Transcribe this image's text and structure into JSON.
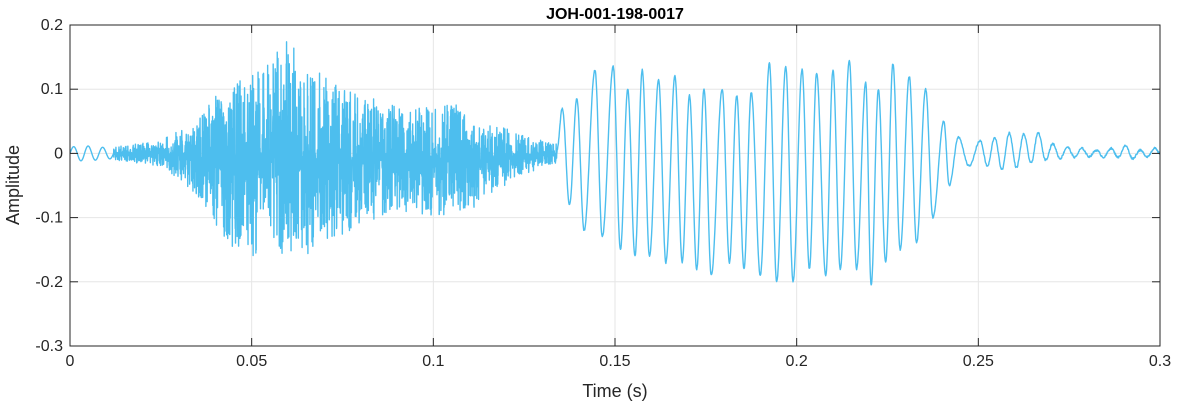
{
  "chart_data": {
    "type": "line",
    "title": "JOH-001-198-0017",
    "xlabel": "Time (s)",
    "ylabel": "Amplitude",
    "xlim": [
      0,
      0.3
    ],
    "ylim": [
      -0.3,
      0.2
    ],
    "xticks": [
      0,
      0.05,
      0.1,
      0.15,
      0.2,
      0.25,
      0.3
    ],
    "xtick_labels": [
      "0",
      "0.05",
      "0.1",
      "0.15",
      "0.2",
      "0.25",
      "0.3"
    ],
    "yticks": [
      -0.3,
      -0.2,
      -0.1,
      0,
      0.1,
      0.2
    ],
    "ytick_labels": [
      "-0.3",
      "-0.2",
      "-0.1",
      "0",
      "0.1",
      "0.2"
    ],
    "grid": true,
    "line_color": "#4DBEEE",
    "series": [
      {
        "segments": [
          {
            "t0": 0.0,
            "t1": 0.012,
            "kind": "tone",
            "freq": 250,
            "amp": [
              [
                0.0,
                0.01
              ],
              [
                0.004,
                0.012
              ],
              [
                0.012,
                0.008
              ]
            ]
          },
          {
            "t0": 0.012,
            "t1": 0.134,
            "kind": "noise",
            "env_pos": [
              [
                0.012,
                0.01
              ],
              [
                0.025,
                0.02
              ],
              [
                0.035,
                0.05
              ],
              [
                0.04,
                0.09
              ],
              [
                0.045,
                0.11
              ],
              [
                0.05,
                0.12
              ],
              [
                0.055,
                0.15
              ],
              [
                0.06,
                0.18
              ],
              [
                0.065,
                0.14
              ],
              [
                0.07,
                0.12
              ],
              [
                0.075,
                0.1
              ],
              [
                0.08,
                0.09
              ],
              [
                0.09,
                0.08
              ],
              [
                0.1,
                0.07
              ],
              [
                0.105,
                0.09
              ],
              [
                0.11,
                0.05
              ],
              [
                0.12,
                0.04
              ],
              [
                0.13,
                0.02
              ],
              [
                0.134,
                0.015
              ]
            ],
            "env_neg": [
              [
                0.012,
                -0.01
              ],
              [
                0.025,
                -0.02
              ],
              [
                0.03,
                -0.04
              ],
              [
                0.035,
                -0.07
              ],
              [
                0.04,
                -0.11
              ],
              [
                0.045,
                -0.15
              ],
              [
                0.05,
                -0.16
              ],
              [
                0.055,
                -0.15
              ],
              [
                0.06,
                -0.17
              ],
              [
                0.065,
                -0.16
              ],
              [
                0.07,
                -0.14
              ],
              [
                0.075,
                -0.13
              ],
              [
                0.08,
                -0.11
              ],
              [
                0.09,
                -0.09
              ],
              [
                0.1,
                -0.1
              ],
              [
                0.11,
                -0.09
              ],
              [
                0.12,
                -0.05
              ],
              [
                0.13,
                -0.02
              ],
              [
                0.134,
                -0.015
              ]
            ]
          },
          {
            "t0": 0.134,
            "t1": 0.3,
            "kind": "voiced",
            "peaks": [
              [
                0.1355,
                0.07
              ],
              [
                0.1395,
                0.085
              ],
              [
                0.1445,
                0.13
              ],
              [
                0.1495,
                0.135
              ],
              [
                0.1535,
                0.1
              ],
              [
                0.1575,
                0.13
              ],
              [
                0.162,
                0.115
              ],
              [
                0.1665,
                0.12
              ],
              [
                0.1705,
                0.09
              ],
              [
                0.1745,
                0.1
              ],
              [
                0.1795,
                0.1
              ],
              [
                0.1835,
                0.09
              ],
              [
                0.1875,
                0.095
              ],
              [
                0.1925,
                0.14
              ],
              [
                0.197,
                0.135
              ],
              [
                0.2015,
                0.13
              ],
              [
                0.2055,
                0.125
              ],
              [
                0.21,
                0.13
              ],
              [
                0.2145,
                0.145
              ],
              [
                0.219,
                0.11
              ],
              [
                0.2225,
                0.1
              ],
              [
                0.2265,
                0.14
              ],
              [
                0.231,
                0.12
              ],
              [
                0.2355,
                0.1
              ],
              [
                0.2405,
                0.05
              ],
              [
                0.2445,
                0.025
              ],
              [
                0.2505,
                0.02
              ],
              [
                0.2545,
                0.025
              ],
              [
                0.2585,
                0.032
              ],
              [
                0.2625,
                0.03
              ],
              [
                0.2665,
                0.032
              ],
              [
                0.2705,
                0.015
              ],
              [
                0.2745,
                0.01
              ],
              [
                0.2785,
                0.008
              ],
              [
                0.2825,
                0.005
              ],
              [
                0.2865,
                0.008
              ],
              [
                0.2905,
                0.012
              ],
              [
                0.2945,
                0.005
              ],
              [
                0.2985,
                0.008
              ]
            ],
            "troughs": [
              [
                0.1375,
                -0.08
              ],
              [
                0.1415,
                -0.12
              ],
              [
                0.1465,
                -0.13
              ],
              [
                0.1515,
                -0.15
              ],
              [
                0.1555,
                -0.16
              ],
              [
                0.1595,
                -0.16
              ],
              [
                0.164,
                -0.17
              ],
              [
                0.1685,
                -0.17
              ],
              [
                0.1725,
                -0.18
              ],
              [
                0.1765,
                -0.19
              ],
              [
                0.1815,
                -0.17
              ],
              [
                0.1855,
                -0.18
              ],
              [
                0.19,
                -0.19
              ],
              [
                0.1945,
                -0.2
              ],
              [
                0.199,
                -0.2
              ],
              [
                0.2035,
                -0.18
              ],
              [
                0.208,
                -0.19
              ],
              [
                0.212,
                -0.18
              ],
              [
                0.2165,
                -0.18
              ],
              [
                0.2205,
                -0.205
              ],
              [
                0.2245,
                -0.17
              ],
              [
                0.2285,
                -0.15
              ],
              [
                0.233,
                -0.14
              ],
              [
                0.2375,
                -0.1
              ],
              [
                0.242,
                -0.05
              ],
              [
                0.2475,
                -0.02
              ],
              [
                0.2525,
                -0.02
              ],
              [
                0.2565,
                -0.025
              ],
              [
                0.2605,
                -0.022
              ],
              [
                0.2645,
                -0.015
              ],
              [
                0.2685,
                -0.01
              ],
              [
                0.2725,
                -0.008
              ],
              [
                0.2765,
                -0.006
              ],
              [
                0.2805,
                -0.005
              ],
              [
                0.2845,
                -0.006
              ],
              [
                0.2885,
                -0.006
              ],
              [
                0.2925,
                -0.008
              ],
              [
                0.2965,
                -0.005
              ],
              [
                0.3,
                0.0
              ]
            ]
          }
        ]
      }
    ]
  }
}
